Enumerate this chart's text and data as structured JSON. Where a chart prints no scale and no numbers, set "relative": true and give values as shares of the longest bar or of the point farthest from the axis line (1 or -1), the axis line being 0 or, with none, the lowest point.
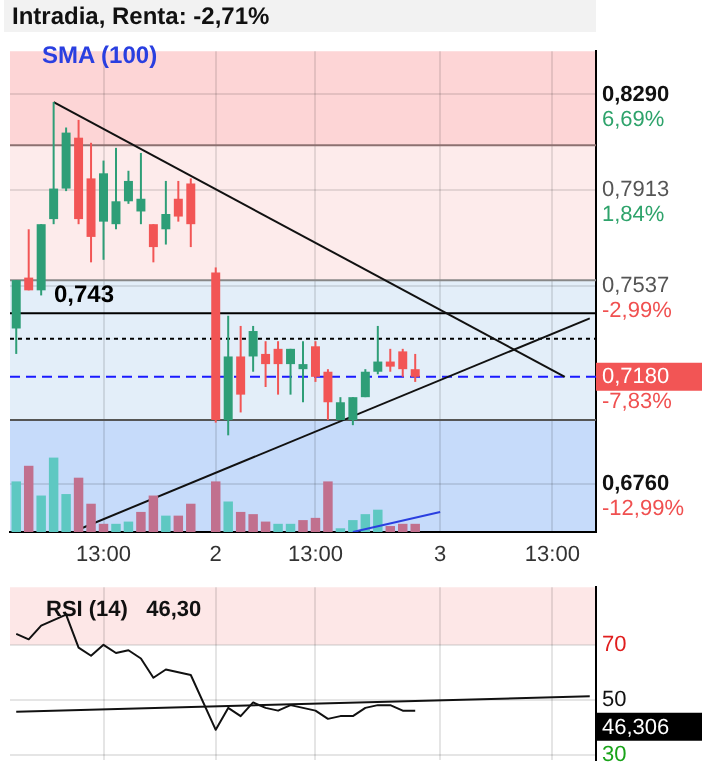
{
  "chart_data": [
    {
      "type": "candlestick",
      "title": "Intradia, Renta: -2,71%",
      "categories": [
        null,
        null,
        null,
        null,
        null,
        null,
        null,
        "13:00",
        null,
        null,
        null,
        null,
        null,
        null,
        null,
        null,
        "2",
        null,
        null,
        null,
        null,
        null,
        null,
        null,
        "13:00",
        null,
        null,
        null,
        null,
        null,
        null,
        null,
        null,
        null,
        "3",
        null,
        null,
        null,
        null,
        null,
        null,
        null,
        null,
        "13:00",
        null,
        null,
        null
      ],
      "ylim": [
        0.657,
        0.846
      ],
      "yticks": [
        {
          "value": 0.829,
          "label": "0,8290"
        },
        {
          "value": 0.7913,
          "label": "0,7913"
        },
        {
          "value": 0.7537,
          "label": "0,7537"
        },
        {
          "value": 0.676,
          "label": "0,6760"
        }
      ],
      "annotations": [
        "6,69%",
        "1,84%",
        "-2,99%",
        "-7,83%",
        "-12,99%"
      ],
      "grid": true,
      "series": [
        {
          "ohlc": [
            [
              0.737,
              0.756,
              0.727,
              0.756
            ],
            [
              0.757,
              0.776,
              0.752,
              0.752
            ],
            [
              0.752,
              0.778,
              0.75,
              0.778
            ],
            [
              0.78,
              0.826,
              0.778,
              0.792
            ],
            [
              0.792,
              0.816,
              0.791,
              0.814
            ],
            [
              0.812,
              0.819,
              0.778,
              0.78
            ],
            [
              0.796,
              0.81,
              0.763,
              0.773
            ],
            [
              0.779,
              0.803,
              0.764,
              0.798
            ],
            [
              0.778,
              0.808,
              0.776,
              0.787
            ],
            [
              0.787,
              0.799,
              0.786,
              0.795
            ],
            [
              0.783,
              0.806,
              0.778,
              0.788
            ],
            [
              0.778,
              0.778,
              0.763,
              0.769
            ],
            [
              0.776,
              0.795,
              0.77,
              0.782
            ],
            [
              0.788,
              0.795,
              0.779,
              0.781
            ],
            [
              0.794,
              0.796,
              0.769,
              0.778
            ],
            null,
            [
              0.759,
              0.761,
              0.7,
              0.701
            ],
            [
              0.701,
              0.742,
              0.695,
              0.726
            ],
            [
              0.726,
              0.738,
              0.704,
              0.711
            ],
            [
              0.726,
              0.738,
              0.72,
              0.736
            ],
            [
              0.727,
              0.732,
              0.714,
              0.723
            ],
            [
              0.729,
              0.732,
              0.711,
              0.723
            ],
            [
              0.723,
              0.729,
              0.711,
              0.729
            ],
            [
              0.721,
              0.732,
              0.708,
              0.723
            ],
            [
              0.73,
              0.732,
              0.716,
              0.718
            ],
            [
              0.72,
              0.721,
              0.701,
              0.708
            ],
            [
              0.701,
              0.71,
              0.701,
              0.708
            ],
            [
              0.701,
              0.71,
              0.699,
              0.71
            ],
            [
              0.71,
              0.721,
              0.71,
              0.72
            ],
            [
              0.72,
              0.738,
              0.719,
              0.724
            ],
            [
              0.724,
              0.729,
              0.72,
              0.722
            ],
            [
              0.728,
              0.729,
              0.718,
              0.721
            ],
            [
              0.721,
              0.727,
              0.716,
              0.718
            ],
            null,
            null,
            null,
            null,
            null,
            null,
            null,
            null,
            null,
            null,
            null,
            null,
            null,
            null
          ]
        },
        {
          "type": "line",
          "color": "#111111",
          "values": [
            null,
            null,
            null,
            0.826,
            null,
            null,
            null,
            null,
            null,
            null,
            null,
            null,
            null,
            null,
            null,
            null,
            null,
            null,
            null,
            null,
            null,
            null,
            null,
            null,
            null,
            null,
            null,
            null,
            null,
            null,
            null,
            null,
            null,
            null,
            null,
            null,
            null,
            null,
            null,
            null,
            null,
            null,
            null,
            null,
            0.718,
            null,
            null
          ]
        },
        {
          "type": "line",
          "color": "#111111",
          "values": [
            null,
            null,
            null,
            null,
            null,
            0.658,
            null,
            null,
            null,
            null,
            null,
            null,
            null,
            null,
            null,
            null,
            null,
            null,
            null,
            null,
            null,
            null,
            null,
            null,
            null,
            null,
            null,
            null,
            null,
            null,
            null,
            null,
            null,
            null,
            null,
            null,
            null,
            null,
            null,
            null,
            null,
            null,
            null,
            null,
            null,
            null,
            0.741
          ]
        }
      ],
      "bands": [
        {
          "axis": "y",
          "from": 0.809,
          "to": 0.846,
          "color": "#fdd5d6"
        },
        {
          "axis": "y",
          "from": 0.756,
          "to": 0.809,
          "color": "#fdebeb"
        },
        {
          "axis": "y",
          "from": 0.701,
          "to": 0.756,
          "color": "#e3eef9"
        },
        {
          "axis": "y",
          "from": 0.657,
          "to": 0.701,
          "color": "#c6dbfa"
        }
      ],
      "ref_lines": [
        {
          "axis": "y",
          "value": 0.809,
          "color": "#8c7070"
        },
        {
          "axis": "y",
          "value": 0.756,
          "color": "#888888"
        },
        {
          "axis": "y",
          "value": 0.743,
          "label": "0,743",
          "color": "#000000"
        },
        {
          "axis": "y",
          "value": 0.733,
          "line_style": "dotted",
          "color": "#000000"
        },
        {
          "axis": "y",
          "value": 0.718,
          "label": "0,7180",
          "line_style": "dashed",
          "color": "#1a1aff"
        },
        {
          "axis": "y",
          "value": 0.701,
          "color": "#555555"
        }
      ]
    },
    {
      "type": "bar",
      "relative": true,
      "tick_labels": false,
      "legend": "top left",
      "categories": [
        null,
        null,
        null,
        null,
        null,
        null,
        null,
        null,
        null,
        null,
        null,
        null,
        null,
        null,
        null,
        null,
        null,
        null,
        null,
        null,
        null,
        null,
        null,
        null,
        null,
        null,
        null,
        null,
        null,
        null,
        null,
        null,
        null,
        null,
        null,
        null,
        null,
        null,
        null,
        null,
        null,
        null,
        null,
        null,
        null,
        null,
        null
      ],
      "series": [
        {
          "values": [
            0.68,
            0.89,
            0.49,
            1,
            0.51,
            0.73,
            0.38,
            0.11,
            0.11,
            0.14,
            0.27,
            0.49,
            0.22,
            0.22,
            0.38,
            null,
            0.68,
            0.41,
            0.27,
            0.24,
            0.14,
            0.11,
            0.11,
            0.16,
            0.19,
            0.68,
            0.05,
            0.16,
            0.24,
            0.3,
            0.08,
            0.11,
            0.11,
            null,
            null,
            null,
            null,
            null,
            null,
            null,
            null,
            null,
            null,
            null,
            null,
            null,
            null
          ],
          "colors": [
            "#5ec8c2",
            "#c1708e",
            "#5ec8c2",
            "#5ec8c2",
            "#5ec8c2",
            "#c1708e",
            "#c1708e",
            "#c1708e",
            "#5ec8c2",
            "#5ec8c2",
            "#c1708e",
            "#c1708e",
            "#5ec8c2",
            "#c1708e",
            "#c1708e",
            null,
            "#c1708e",
            "#5ec8c2",
            "#c1708e",
            "#c1708e",
            "#c1708e",
            "#5ec8c2",
            "#5ec8c2",
            "#c1708e",
            "#c1708e",
            "#c1708e",
            "#5ec8c2",
            "#5ec8c2",
            "#5ec8c2",
            "#5ec8c2",
            "#c1708e",
            "#c1708e",
            "#c1708e",
            null,
            null,
            null,
            null,
            null,
            null,
            null,
            null,
            null,
            null,
            null,
            null,
            null,
            null
          ]
        },
        {
          "type": "line",
          "name": "SMA (100)",
          "color": "#2a3fe0",
          "values": [
            null,
            null,
            null,
            null,
            null,
            null,
            null,
            null,
            null,
            null,
            null,
            null,
            null,
            null,
            null,
            null,
            null,
            null,
            null,
            null,
            null,
            null,
            null,
            null,
            null,
            null,
            null,
            0,
            null,
            null,
            null,
            null,
            null,
            null,
            0.27,
            null,
            null,
            null,
            null,
            null,
            null,
            null,
            null,
            null,
            null,
            null,
            null
          ]
        }
      ]
    },
    {
      "type": "line",
      "title": "RSI (14)   46,30",
      "categories": [
        null,
        null,
        null,
        null,
        null,
        null,
        null,
        null,
        null,
        null,
        null,
        null,
        null,
        null,
        null,
        null,
        null,
        null,
        null,
        null,
        null,
        null,
        null,
        null,
        null,
        null,
        null,
        null,
        null,
        null,
        null,
        null,
        null,
        null,
        null,
        null,
        null,
        null,
        null,
        null,
        null,
        null,
        null,
        null,
        null,
        null,
        null
      ],
      "ylim": [
        28,
        91
      ],
      "yticks": [
        30,
        50,
        70
      ],
      "grid": true,
      "tick_labels": "y",
      "series": [
        {
          "color": "#111111",
          "values": [
            74,
            72,
            77,
            79,
            81,
            69,
            66,
            70,
            67,
            68,
            65,
            58,
            61,
            60,
            59,
            null,
            39,
            47,
            44,
            49,
            47,
            46,
            48,
            47,
            46,
            43,
            44,
            44,
            47,
            48,
            48,
            46,
            46,
            null,
            null,
            null,
            null,
            null,
            null,
            null,
            null,
            null,
            null,
            null,
            null,
            null,
            null
          ]
        },
        {
          "color": "#111111",
          "values": [
            45.6,
            null,
            null,
            null,
            null,
            null,
            null,
            null,
            null,
            null,
            null,
            null,
            null,
            null,
            null,
            null,
            null,
            null,
            null,
            null,
            null,
            null,
            null,
            null,
            null,
            null,
            null,
            null,
            null,
            null,
            null,
            null,
            null,
            null,
            null,
            null,
            null,
            null,
            null,
            null,
            null,
            null,
            null,
            null,
            null,
            null,
            51.2
          ]
        }
      ],
      "bands": [
        {
          "axis": "y",
          "from": 70,
          "to": 91,
          "color": "#fde7e7"
        }
      ],
      "annotations": [
        "46,306"
      ]
    }
  ]
}
